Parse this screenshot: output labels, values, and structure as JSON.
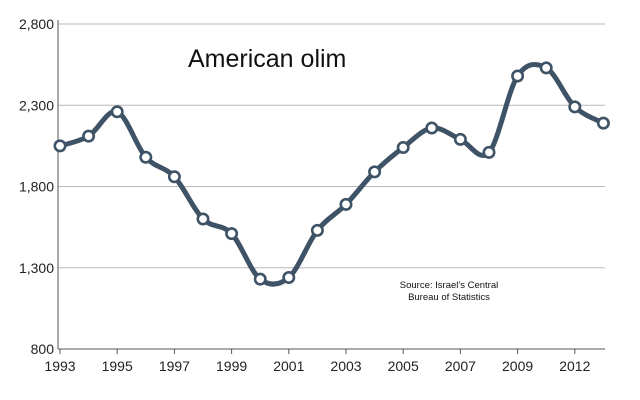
{
  "chart_data": {
    "type": "line",
    "title": "American olim",
    "annotation": [
      "Source: Israel's Central",
      "Bureau of Statistics"
    ],
    "xlabel": "",
    "ylabel": "",
    "x": [
      1993,
      1994,
      1995,
      1996,
      1997,
      1998,
      1999,
      2000,
      2001,
      2002,
      2003,
      2004,
      2005,
      2006,
      2007,
      2008,
      2009,
      2010,
      2011,
      2012
    ],
    "values": [
      2050,
      2110,
      2260,
      1980,
      1860,
      1600,
      1510,
      1230,
      1240,
      1530,
      1690,
      1890,
      2040,
      2160,
      2090,
      2010,
      2480,
      2530,
      2290,
      2190
    ],
    "x_tick_labels": [
      "1993",
      "1995",
      "1997",
      "1999",
      "2001",
      "2003",
      "2005",
      "2007",
      "2009",
      "2012"
    ],
    "y_tick_labels": [
      "800",
      "1,300",
      "1,800",
      "2,300",
      "2,800"
    ],
    "y_ticks": [
      800,
      1300,
      1800,
      2300,
      2800
    ],
    "ylim": [
      800,
      2800
    ],
    "grid": "horizontal",
    "line_color": "#3f5367",
    "marker_fill": "#ffffff",
    "grid_color": "#b8b8b8",
    "axis_color": "#555555"
  }
}
